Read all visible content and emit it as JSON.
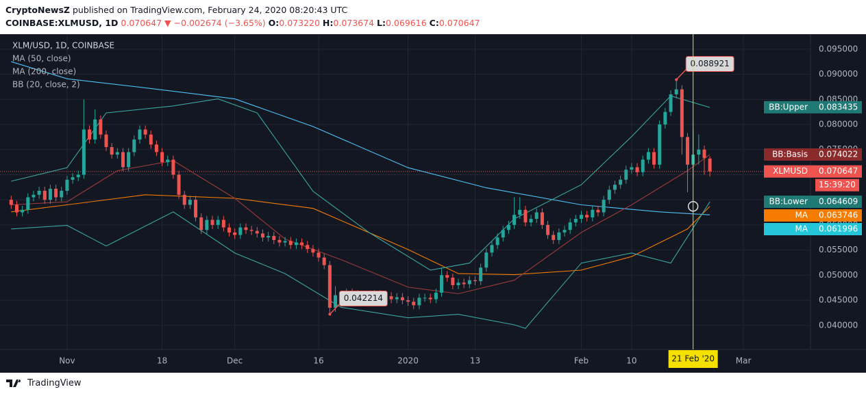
{
  "header": {
    "publisher": "CryptoNewsZ",
    "published": "published on TradingView.com, February 24, 2020 08:20:43 UTC",
    "symbol": "COINBASE:XLMUSD, 1D",
    "last": "0.070647",
    "arrow": "▼",
    "change": "−0.002674 (−3.65%)",
    "o_label": "O:",
    "open": "0.073220",
    "h_label": "H:",
    "high": "0.073674",
    "l_label": "L:",
    "low": "0.069616",
    "c_label": "C:",
    "close": "0.070647"
  },
  "footer": {
    "brand": "TradingView"
  },
  "chart_data": {
    "type": "candlestick",
    "title": "XLM/USD, 1D, COINBASE",
    "up_color": "#26a69a",
    "down_color": "#ef5350",
    "grid": true,
    "xlim": [
      "2019-10-20",
      "2020-03-13"
    ],
    "ylim": [
      0.0352,
      0.0973
    ],
    "yticks": [
      {
        "value": 0.04,
        "label": "0.040000"
      },
      {
        "value": 0.045,
        "label": "0.045000"
      },
      {
        "value": 0.05,
        "label": "0.050000"
      },
      {
        "value": 0.055,
        "label": "0.055000"
      },
      {
        "value": 0.06,
        "label": "0.060000"
      },
      {
        "value": 0.065,
        "label": "0.065000"
      },
      {
        "value": 0.07,
        "label": "0.070000"
      },
      {
        "value": 0.075,
        "label": "0.075000"
      },
      {
        "value": 0.08,
        "label": "0.080000"
      },
      {
        "value": 0.085,
        "label": "0.085000"
      },
      {
        "value": 0.09,
        "label": "0.090000"
      },
      {
        "value": 0.095,
        "label": "0.095000"
      }
    ],
    "xticks": [
      {
        "value": "2019-11-01",
        "label": "Nov"
      },
      {
        "value": "2019-11-18",
        "label": "18"
      },
      {
        "value": "2019-12-01",
        "label": "Dec"
      },
      {
        "value": "2019-12-16",
        "label": "16"
      },
      {
        "value": "2020-01-01",
        "label": "2020"
      },
      {
        "value": "2020-01-13",
        "label": "13"
      },
      {
        "value": "2020-02-01",
        "label": "Feb"
      },
      {
        "value": "2020-02-10",
        "label": "10"
      },
      {
        "value": "2020-03-01",
        "label": "Mar"
      }
    ],
    "x": [
      "2019-10-22",
      "2019-10-23",
      "2019-10-24",
      "2019-10-25",
      "2019-10-26",
      "2019-10-27",
      "2019-10-28",
      "2019-10-29",
      "2019-10-30",
      "2019-10-31",
      "2019-11-01",
      "2019-11-02",
      "2019-11-03",
      "2019-11-04",
      "2019-11-05",
      "2019-11-06",
      "2019-11-07",
      "2019-11-08",
      "2019-11-09",
      "2019-11-10",
      "2019-11-11",
      "2019-11-12",
      "2019-11-13",
      "2019-11-14",
      "2019-11-15",
      "2019-11-16",
      "2019-11-17",
      "2019-11-18",
      "2019-11-19",
      "2019-11-20",
      "2019-11-21",
      "2019-11-22",
      "2019-11-23",
      "2019-11-24",
      "2019-11-25",
      "2019-11-26",
      "2019-11-27",
      "2019-11-28",
      "2019-11-29",
      "2019-11-30",
      "2019-12-01",
      "2019-12-02",
      "2019-12-03",
      "2019-12-04",
      "2019-12-05",
      "2019-12-06",
      "2019-12-07",
      "2019-12-08",
      "2019-12-09",
      "2019-12-10",
      "2019-12-11",
      "2019-12-12",
      "2019-12-13",
      "2019-12-14",
      "2019-12-15",
      "2019-12-16",
      "2019-12-17",
      "2019-12-18",
      "2019-12-19",
      "2019-12-20",
      "2019-12-21",
      "2019-12-22",
      "2019-12-23",
      "2019-12-24",
      "2019-12-25",
      "2019-12-26",
      "2019-12-27",
      "2019-12-28",
      "2019-12-29",
      "2019-12-30",
      "2019-12-31",
      "2020-01-01",
      "2020-01-02",
      "2020-01-03",
      "2020-01-04",
      "2020-01-05",
      "2020-01-06",
      "2020-01-07",
      "2020-01-08",
      "2020-01-09",
      "2020-01-10",
      "2020-01-11",
      "2020-01-12",
      "2020-01-13",
      "2020-01-14",
      "2020-01-15",
      "2020-01-16",
      "2020-01-17",
      "2020-01-18",
      "2020-01-19",
      "2020-01-20",
      "2020-01-21",
      "2020-01-22",
      "2020-01-23",
      "2020-01-24",
      "2020-01-25",
      "2020-01-26",
      "2020-01-27",
      "2020-01-28",
      "2020-01-29",
      "2020-01-30",
      "2020-01-31",
      "2020-02-01",
      "2020-02-02",
      "2020-02-03",
      "2020-02-04",
      "2020-02-05",
      "2020-02-06",
      "2020-02-07",
      "2020-02-08",
      "2020-02-09",
      "2020-02-10",
      "2020-02-11",
      "2020-02-12",
      "2020-02-13",
      "2020-02-14",
      "2020-02-15",
      "2020-02-16",
      "2020-02-17",
      "2020-02-18",
      "2020-02-19",
      "2020-02-20",
      "2020-02-21",
      "2020-02-22",
      "2020-02-23",
      "2020-02-24"
    ],
    "open": [
      0.065,
      0.064,
      0.0625,
      0.063,
      0.0655,
      0.066,
      0.0668,
      0.065,
      0.0672,
      0.0655,
      0.0668,
      0.069,
      0.0695,
      0.07,
      0.079,
      0.077,
      0.081,
      0.078,
      0.0755,
      0.074,
      0.0745,
      0.0715,
      0.0745,
      0.077,
      0.079,
      0.078,
      0.076,
      0.0745,
      0.0725,
      0.073,
      0.07,
      0.066,
      0.064,
      0.065,
      0.0615,
      0.059,
      0.061,
      0.06,
      0.061,
      0.0595,
      0.0585,
      0.058,
      0.0595,
      0.059,
      0.0588,
      0.0583,
      0.0575,
      0.0578,
      0.057,
      0.0565,
      0.0568,
      0.056,
      0.0565,
      0.056,
      0.0552,
      0.0545,
      0.0535,
      0.052,
      0.0435,
      0.046,
      0.0455,
      0.0465,
      0.0462,
      0.0455,
      0.046,
      0.0458,
      0.0462,
      0.0455,
      0.0458,
      0.0452,
      0.0456,
      0.045,
      0.0447,
      0.044,
      0.0455,
      0.0455,
      0.0452,
      0.0465,
      0.05,
      0.0495,
      0.048,
      0.0485,
      0.0482,
      0.049,
      0.0488,
      0.0515,
      0.0545,
      0.056,
      0.0575,
      0.059,
      0.06,
      0.062,
      0.063,
      0.0605,
      0.0612,
      0.0625,
      0.06,
      0.058,
      0.057,
      0.0585,
      0.059,
      0.0605,
      0.0612,
      0.062,
      0.0615,
      0.063,
      0.0625,
      0.065,
      0.067,
      0.068,
      0.069,
      0.071,
      0.0715,
      0.0705,
      0.073,
      0.0745,
      0.072,
      0.08,
      0.0825,
      0.086,
      0.087,
      0.0775,
      0.072,
      0.074,
      0.075,
      0.07322
    ],
    "high": [
      0.0658,
      0.0648,
      0.0638,
      0.0663,
      0.0668,
      0.0676,
      0.0676,
      0.068,
      0.068,
      0.0676,
      0.0698,
      0.0703,
      0.0708,
      0.085,
      0.0798,
      0.083,
      0.0818,
      0.0788,
      0.0763,
      0.0753,
      0.0753,
      0.0753,
      0.0778,
      0.0798,
      0.0798,
      0.0788,
      0.0768,
      0.0753,
      0.0738,
      0.0738,
      0.0708,
      0.0668,
      0.0658,
      0.0658,
      0.0623,
      0.0618,
      0.0618,
      0.0618,
      0.0618,
      0.0603,
      0.0593,
      0.0603,
      0.0603,
      0.0598,
      0.0596,
      0.0591,
      0.0586,
      0.0586,
      0.0578,
      0.0576,
      0.0576,
      0.0573,
      0.0573,
      0.0568,
      0.056,
      0.0553,
      0.0543,
      0.0528,
      0.0478,
      0.0468,
      0.0473,
      0.0473,
      0.047,
      0.0468,
      0.0468,
      0.047,
      0.047,
      0.0466,
      0.0466,
      0.0464,
      0.0464,
      0.0458,
      0.0455,
      0.0463,
      0.0463,
      0.0463,
      0.0473,
      0.0515,
      0.0508,
      0.0503,
      0.0493,
      0.0493,
      0.0498,
      0.0498,
      0.0523,
      0.0553,
      0.0568,
      0.0583,
      0.0598,
      0.0608,
      0.0655,
      0.0655,
      0.0638,
      0.062,
      0.0633,
      0.0633,
      0.0608,
      0.0588,
      0.0593,
      0.0598,
      0.0613,
      0.062,
      0.0628,
      0.0628,
      0.0638,
      0.0638,
      0.0658,
      0.0678,
      0.0688,
      0.0698,
      0.0718,
      0.0723,
      0.0723,
      0.0738,
      0.0753,
      0.0753,
      0.0808,
      0.0833,
      0.0868,
      0.088921,
      0.0878,
      0.0783,
      0.079,
      0.078,
      0.0758,
      0.073674
    ],
    "low": [
      0.0632,
      0.0617,
      0.0617,
      0.0622,
      0.0647,
      0.0652,
      0.0642,
      0.0642,
      0.0647,
      0.0647,
      0.066,
      0.0682,
      0.0687,
      0.0692,
      0.0762,
      0.0762,
      0.0772,
      0.0747,
      0.0732,
      0.0732,
      0.0707,
      0.0707,
      0.0737,
      0.0762,
      0.0772,
      0.0752,
      0.0737,
      0.0717,
      0.0717,
      0.0692,
      0.0652,
      0.0632,
      0.0632,
      0.0607,
      0.0582,
      0.0582,
      0.0592,
      0.0592,
      0.0587,
      0.0577,
      0.0572,
      0.0572,
      0.0582,
      0.058,
      0.0575,
      0.0567,
      0.0567,
      0.0562,
      0.0557,
      0.0557,
      0.0552,
      0.0552,
      0.0552,
      0.0544,
      0.0537,
      0.0527,
      0.0512,
      0.042214,
      0.0427,
      0.0447,
      0.0447,
      0.0454,
      0.0447,
      0.0447,
      0.045,
      0.045,
      0.0447,
      0.0447,
      0.0444,
      0.0444,
      0.0442,
      0.0439,
      0.0432,
      0.0432,
      0.0447,
      0.0444,
      0.0444,
      0.0457,
      0.0487,
      0.0472,
      0.0472,
      0.0474,
      0.0474,
      0.048,
      0.048,
      0.0507,
      0.0537,
      0.0552,
      0.0567,
      0.0582,
      0.0592,
      0.0612,
      0.0597,
      0.0597,
      0.0604,
      0.0592,
      0.0572,
      0.0562,
      0.0562,
      0.0577,
      0.0582,
      0.0597,
      0.0604,
      0.0607,
      0.0607,
      0.0617,
      0.0617,
      0.0642,
      0.0662,
      0.0672,
      0.0682,
      0.0702,
      0.0697,
      0.0697,
      0.0722,
      0.0712,
      0.0712,
      0.0792,
      0.0817,
      0.0852,
      0.074,
      0.0665,
      0.069,
      0.072,
      0.07,
      0.069616
    ],
    "close": [
      0.064,
      0.0625,
      0.063,
      0.0655,
      0.066,
      0.0668,
      0.065,
      0.0672,
      0.0655,
      0.0668,
      0.069,
      0.0695,
      0.07,
      0.079,
      0.077,
      0.081,
      0.078,
      0.0755,
      0.074,
      0.0745,
      0.0715,
      0.0745,
      0.077,
      0.079,
      0.078,
      0.076,
      0.0745,
      0.0725,
      0.073,
      0.07,
      0.066,
      0.064,
      0.065,
      0.0615,
      0.059,
      0.061,
      0.06,
      0.061,
      0.0595,
      0.0585,
      0.058,
      0.0595,
      0.059,
      0.0588,
      0.0583,
      0.0575,
      0.0578,
      0.057,
      0.0565,
      0.0568,
      0.056,
      0.0565,
      0.056,
      0.0552,
      0.0545,
      0.0535,
      0.052,
      0.0435,
      0.046,
      0.0455,
      0.0465,
      0.0462,
      0.0455,
      0.046,
      0.0458,
      0.0462,
      0.0455,
      0.0458,
      0.0452,
      0.0456,
      0.045,
      0.0447,
      0.044,
      0.0455,
      0.0455,
      0.0452,
      0.0465,
      0.05,
      0.0495,
      0.048,
      0.0485,
      0.0482,
      0.049,
      0.0488,
      0.0515,
      0.0545,
      0.056,
      0.0575,
      0.059,
      0.06,
      0.062,
      0.063,
      0.0605,
      0.0612,
      0.0625,
      0.06,
      0.058,
      0.057,
      0.0585,
      0.059,
      0.0605,
      0.0612,
      0.062,
      0.0615,
      0.063,
      0.0625,
      0.065,
      0.067,
      0.068,
      0.069,
      0.071,
      0.0715,
      0.0705,
      0.073,
      0.0745,
      0.072,
      0.08,
      0.0825,
      0.086,
      0.087,
      0.0775,
      0.072,
      0.074,
      0.075,
      0.0733,
      0.070647
    ],
    "indicators": [
      {
        "name": "MA (50, close)",
        "lines": [
          {
            "color": "#f57c00",
            "x": [
              "2019-10-22",
              "2019-11-01",
              "2019-11-15",
              "2019-12-01",
              "2019-12-15",
              "2020-01-01",
              "2020-01-10",
              "2020-01-20",
              "2020-02-01",
              "2020-02-10",
              "2020-02-20",
              "2020-02-24"
            ],
            "values": [
              0.0626,
              0.064,
              0.066,
              0.0653,
              0.0633,
              0.0551,
              0.0503,
              0.0501,
              0.051,
              0.0537,
              0.0592,
              0.0637
            ]
          }
        ]
      },
      {
        "name": "MA (200, close)",
        "lines": [
          {
            "color": "#4fc3f7",
            "x": [
              "2019-10-22",
              "2019-11-01",
              "2019-11-15",
              "2019-12-01",
              "2019-12-15",
              "2020-01-01",
              "2020-01-15",
              "2020-02-01",
              "2020-02-15",
              "2020-02-24"
            ],
            "values": [
              0.0925,
              0.0891,
              0.0873,
              0.0851,
              0.0796,
              0.0714,
              0.0674,
              0.064,
              0.0626,
              0.062
            ]
          }
        ]
      },
      {
        "name": "BB (20, close, 2)",
        "lines": [
          {
            "color": "#3aa6a0",
            "x": [
              "2019-10-22",
              "2019-11-01",
              "2019-11-08",
              "2019-11-20",
              "2019-11-28",
              "2019-12-05",
              "2019-12-15",
              "2019-12-25",
              "2020-01-05",
              "2020-01-12",
              "2020-01-20",
              "2020-02-01",
              "2020-02-10",
              "2020-02-17",
              "2020-02-24"
            ],
            "values": [
              0.0687,
              0.0714,
              0.0823,
              0.0837,
              0.0851,
              0.0823,
              0.0667,
              0.0585,
              0.051,
              0.0524,
              0.0612,
              0.068,
              0.0776,
              0.0857,
              0.0834
            ]
          },
          {
            "color": "#9c3b3b",
            "x": [
              "2019-10-22",
              "2019-11-01",
              "2019-11-10",
              "2019-11-20",
              "2019-12-01",
              "2019-12-10",
              "2019-12-20",
              "2020-01-01",
              "2020-01-10",
              "2020-01-20",
              "2020-02-01",
              "2020-02-10",
              "2020-02-20",
              "2020-02-24"
            ],
            "values": [
              0.064,
              0.0646,
              0.0708,
              0.0728,
              0.0653,
              0.0572,
              0.0531,
              0.0476,
              0.0463,
              0.049,
              0.0585,
              0.064,
              0.0708,
              0.074
            ]
          },
          {
            "color": "#3aa6a0",
            "x": [
              "2019-10-22",
              "2019-11-01",
              "2019-11-08",
              "2019-11-20",
              "2019-12-01",
              "2019-12-10",
              "2019-12-20",
              "2020-01-01",
              "2020-01-10",
              "2020-01-20",
              "2020-01-22",
              "2020-02-01",
              "2020-02-10",
              "2020-02-17",
              "2020-02-24"
            ],
            "values": [
              0.0592,
              0.0599,
              0.0558,
              0.0626,
              0.0544,
              0.0503,
              0.0436,
              0.0415,
              0.0422,
              0.0401,
              0.0394,
              0.0524,
              0.0544,
              0.0524,
              0.0646
            ]
          }
        ]
      }
    ],
    "price_labels": [
      {
        "name": "BB:Upper",
        "value": 0.083435,
        "color": "#1f7a75"
      },
      {
        "name": "BB:Basis",
        "value": 0.074022,
        "color": "#8a2a2a"
      },
      {
        "name": "XLMUSD",
        "value": 0.070647,
        "color": "#ef5350",
        "countdown": "15:39:20"
      },
      {
        "name": "BB:Lower",
        "value": 0.064609,
        "color": "#1f7a75"
      },
      {
        "name": "MA",
        "value": 0.063746,
        "color": "#f57c00"
      },
      {
        "name": "MA",
        "value": 0.061996,
        "color": "#26c6da"
      }
    ],
    "annotations": [
      {
        "x": "2020-02-18",
        "y": 0.088921
      },
      {
        "x": "2019-12-18",
        "y": 0.042214
      }
    ],
    "crosshair": {
      "x": "2020-02-21",
      "y": 0.0637,
      "label": "21 Feb '20"
    }
  }
}
